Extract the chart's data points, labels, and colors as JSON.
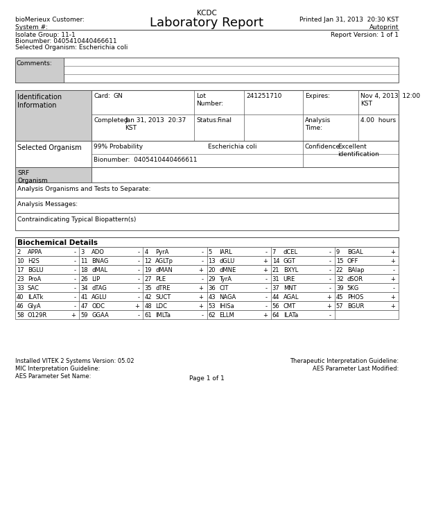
{
  "title_center": "KCDC",
  "title_main": "Laboratory Report",
  "printed_info": "Printed Jan 31, 2013  20:30 KST\nAutoprint\nReport Version: 1 of 1",
  "left_header": "bioMerieux Customer:\nSystem #:",
  "isolate_group": "Isolate Group: 11-1",
  "bionumber": "Bionumber: 0405410440466611",
  "selected_organism_header": "Selected Organism: Escherichia coli",
  "comments_label": "Comments:",
  "id_info_label": "Identification\nInformation",
  "card_label": "Card:",
  "card_value": "GN",
  "lot_label": "Lot\nNumber:",
  "lot_value": "241251710",
  "expires_label": "Expires:",
  "expires_value": "Nov 4, 2013  12:00\nKST",
  "completed_label": "Completed:",
  "completed_value": "Jan 31, 2013  20:37\nKST",
  "status_label": "Status:",
  "status_value": "Final",
  "analysis_time_label": "Analysis\nTime:",
  "analysis_time_value": "4.00  hours",
  "prob_label": "99% Probability",
  "org_name": "Escherichia coli",
  "selected_org_label": "Selected Organism",
  "bionumber2": "Bionumber:  0405410440466611",
  "confidence_label": "Confidence:",
  "confidence_value": "Excellent\nidentification",
  "srf_label": "SRF\nOrganism",
  "analysis_sep_label": "Analysis Organisms and Tests to Separate:",
  "analysis_msg_label": "Analysis Messages:",
  "contraindicating_label": "Contraindicating Typical Biopattern(s)",
  "biochem_label": "Biochemical Details",
  "biochem_rows": [
    [
      "2",
      "APPA",
      "-",
      "3",
      "ADO",
      "-",
      "4",
      "PyrA",
      "-",
      "5",
      "IARL",
      "-",
      "7",
      "dCEL",
      "-",
      "9",
      "BGAL",
      "+"
    ],
    [
      "10",
      "H2S",
      "-",
      "11",
      "BNAG",
      "-",
      "12",
      "AGLTp",
      "-",
      "13",
      "dGLU",
      "+",
      "14",
      "GGT",
      "-",
      "15",
      "OFF",
      "+"
    ],
    [
      "17",
      "BGLU",
      "-",
      "18",
      "dMAL",
      "-",
      "19",
      "dMAN",
      "+",
      "20",
      "dMNE",
      "+",
      "21",
      "BXYL",
      "-",
      "22",
      "BAlap",
      "-"
    ],
    [
      "23",
      "ProA",
      "-",
      "26",
      "LIP",
      "-",
      "27",
      "PLE",
      "-",
      "29",
      "TyrA",
      "-",
      "31",
      "URE",
      "-",
      "32",
      "dSOR",
      "+"
    ],
    [
      "33",
      "SAC",
      "-",
      "34",
      "dTAG",
      "-",
      "35",
      "dTRE",
      "+",
      "36",
      "CIT",
      "-",
      "37",
      "MNT",
      "-",
      "39",
      "5KG",
      "-"
    ],
    [
      "40",
      "ILATk",
      "-",
      "41",
      "AGLU",
      "-",
      "42",
      "SUCT",
      "+",
      "43",
      "NAGA",
      "-",
      "44",
      "AGAL",
      "+",
      "45",
      "PHOS",
      "+"
    ],
    [
      "46",
      "GlyA",
      "-",
      "47",
      "ODC",
      "+",
      "48",
      "LDC",
      "+",
      "53",
      "IHISa",
      "-",
      "56",
      "CMT",
      "+",
      "57",
      "BGUR",
      "+"
    ],
    [
      "58",
      "O129R",
      "+",
      "59",
      "GGAA",
      "-",
      "61",
      "IMLTa",
      "-",
      "62",
      "ELLM",
      "+",
      "64",
      "ILATa",
      "-",
      "",
      "",
      ""
    ]
  ],
  "footer_left": "Installed VITEK 2 Systems Version: 05.02\nMIC Interpretation Guideline:\nAES Parameter Set Name:",
  "footer_right": "Therapeutic Interpretation Guideline:\nAES Parameter Last Modified:",
  "page_label": "Page 1 of 1",
  "bg_color": "#ffffff",
  "line_color": "#555555",
  "gray_fill": "#cccccc",
  "font_size": 6.5
}
